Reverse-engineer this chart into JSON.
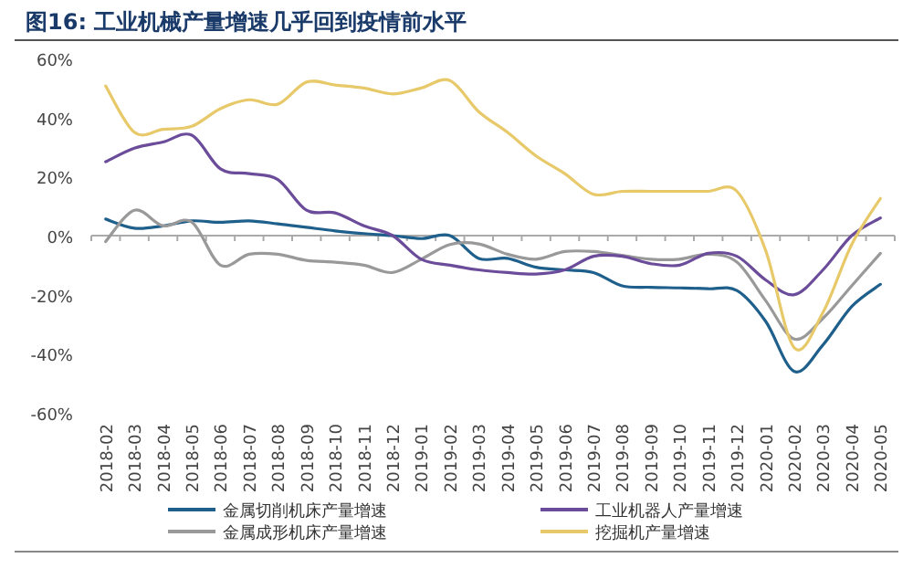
{
  "chart_data": {
    "type": "line",
    "title": "图16: 工业机械产量增速几乎回到疫情前水平",
    "categories": [
      "2018-02",
      "2018-03",
      "2018-04",
      "2018-05",
      "2018-06",
      "2018-07",
      "2018-08",
      "2018-09",
      "2018-10",
      "2018-11",
      "2018-12",
      "2019-01",
      "2019-02",
      "2019-03",
      "2019-04",
      "2019-05",
      "2019-06",
      "2019-07",
      "2019-08",
      "2019-09",
      "2019-10",
      "2019-11",
      "2019-12",
      "2020-01",
      "2020-02",
      "2020-03",
      "2020-04",
      "2020-05"
    ],
    "ylim": [
      -60,
      60
    ],
    "yticks": [
      {
        "value": -60,
        "label": "-60%"
      },
      {
        "value": -40,
        "label": "-40%"
      },
      {
        "value": -20,
        "label": "-20%"
      },
      {
        "value": 0,
        "label": "0%"
      },
      {
        "value": 20,
        "label": "20%"
      },
      {
        "value": 40,
        "label": "40%"
      },
      {
        "value": 60,
        "label": "60%"
      }
    ],
    "legend": "bottom",
    "marker": "none",
    "line_style": "solid",
    "series": [
      {
        "name": "金属切削机床产量增速",
        "color": "#1f5f8b",
        "values": [
          5.6,
          2.5,
          3.3,
          5,
          4.5,
          5,
          4,
          2.8,
          1.6,
          0.7,
          0,
          -1,
          0,
          -7.7,
          -7.7,
          -10.7,
          -11.6,
          -12.5,
          -17,
          -17.5,
          -17.7,
          -18,
          -18.6,
          -29,
          -46,
          -37,
          -24,
          -16.5
        ]
      },
      {
        "name": "金属成形机床产量增速",
        "color": "#999999",
        "values": [
          -2,
          8.6,
          3.3,
          4.6,
          -10,
          -6.3,
          -6.3,
          -8.4,
          -9,
          -10,
          -12.5,
          -8,
          -3,
          -2.8,
          -6.3,
          -8,
          -5.4,
          -5.4,
          -6.7,
          -8,
          -8,
          -6.3,
          -9,
          -22,
          -35,
          -28,
          -17,
          -6
        ]
      },
      {
        "name": "工业机器人产量增速",
        "color": "#6b4c9a",
        "values": [
          25,
          29.6,
          31.7,
          34,
          22.6,
          21,
          19,
          8.6,
          7.7,
          3.3,
          0,
          -8,
          -10,
          -11.6,
          -12.5,
          -13,
          -11.6,
          -7,
          -7,
          -9.5,
          -10,
          -6,
          -7,
          -15,
          -20,
          -11.6,
          0,
          6
        ]
      },
      {
        "name": "挖掘机产量增速",
        "color": "#e8c96a",
        "values": [
          50.7,
          35,
          36,
          37,
          43,
          46,
          44.5,
          52,
          51,
          50,
          48,
          50,
          52.5,
          42,
          35,
          27,
          21,
          14,
          15,
          15,
          15,
          15,
          15,
          -5,
          -38,
          -26,
          -3,
          12.6
        ]
      }
    ]
  }
}
